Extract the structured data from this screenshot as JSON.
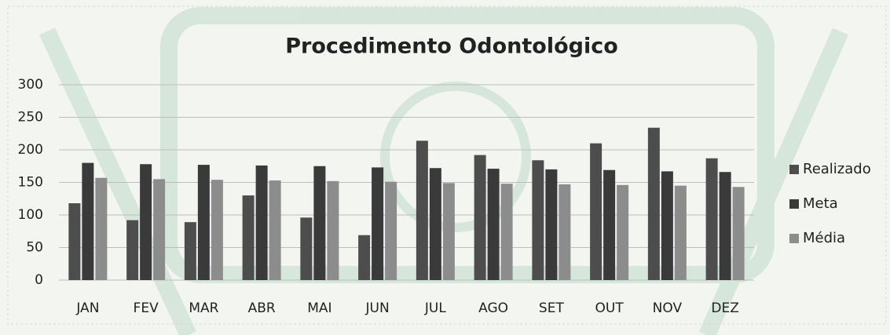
{
  "chart_data": {
    "type": "bar",
    "title": "Procedimento Odontológico",
    "categories": [
      "JAN",
      "FEV",
      "MAR",
      "ABR",
      "MAI",
      "JUN",
      "JUL",
      "AGO",
      "SET",
      "OUT",
      "NOV",
      "DEZ"
    ],
    "series": [
      {
        "name": "Realizado",
        "color": "#4d4d4d",
        "values": [
          118,
          92,
          89,
          130,
          96,
          69,
          214,
          192,
          184,
          210,
          234,
          187
        ]
      },
      {
        "name": "Meta",
        "color": "#3a3a3a",
        "values": [
          180,
          178,
          177,
          176,
          175,
          173,
          172,
          171,
          170,
          169,
          167,
          166
        ]
      },
      {
        "name": "Média",
        "color": "#8c8c8c",
        "values": [
          157,
          155,
          154,
          153,
          152,
          151,
          149,
          148,
          147,
          146,
          145,
          143
        ]
      }
    ],
    "ylim": [
      0,
      300
    ],
    "yticks": [
      0,
      50,
      100,
      150,
      200,
      250,
      300
    ],
    "grid": true,
    "legend": "right"
  }
}
